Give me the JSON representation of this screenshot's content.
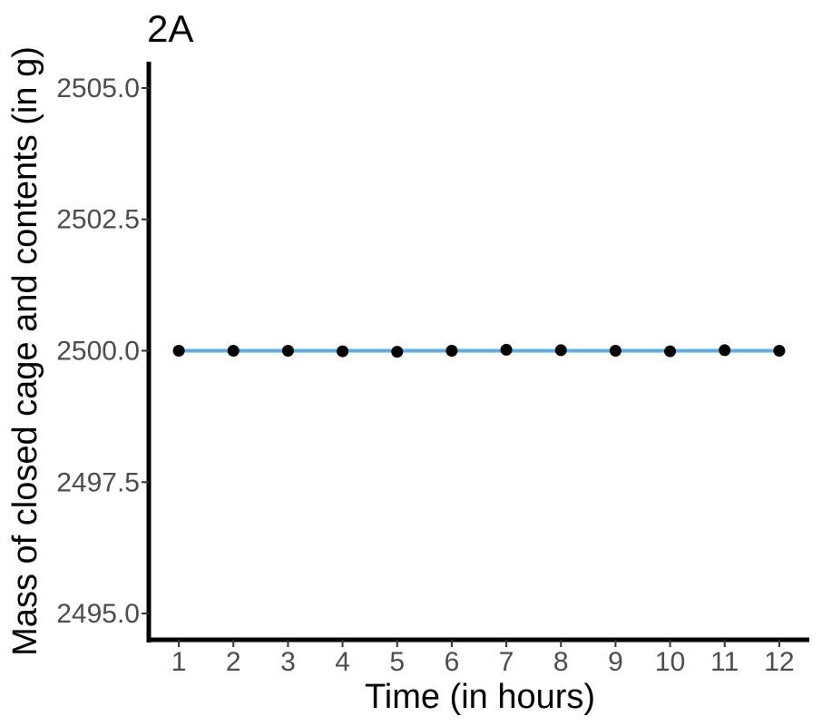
{
  "chart_data": {
    "type": "line",
    "title": "2A",
    "xlabel": "Time (in hours)",
    "ylabel": "Mass of closed cage and contents (in g)",
    "x": [
      1,
      2,
      3,
      4,
      5,
      6,
      7,
      8,
      9,
      10,
      11,
      12
    ],
    "x_tick_labels": [
      "1",
      "2",
      "3",
      "4",
      "5",
      "6",
      "7",
      "8",
      "9",
      "10",
      "11",
      "12"
    ],
    "y_ticks": [
      2495.0,
      2497.5,
      2500.0,
      2502.5,
      2505.0
    ],
    "y_tick_labels": [
      "2495.0",
      "2497.5",
      "2500.0",
      "2502.5",
      "2505.0"
    ],
    "ylim": [
      2494.5,
      2505.5
    ],
    "xlim": [
      0.45,
      12.55
    ],
    "series": [
      {
        "values": [
          2500.0,
          2500.0,
          2500.0,
          2499.99,
          2499.98,
          2500.0,
          2500.02,
          2500.01,
          2500.0,
          2499.99,
          2500.01,
          2500.0
        ],
        "marker_color": "#000000",
        "fit_line": [
          2500.0,
          2500.0
        ],
        "fit_color": "#5DADE2"
      }
    ],
    "grid": false,
    "legend": "none"
  }
}
